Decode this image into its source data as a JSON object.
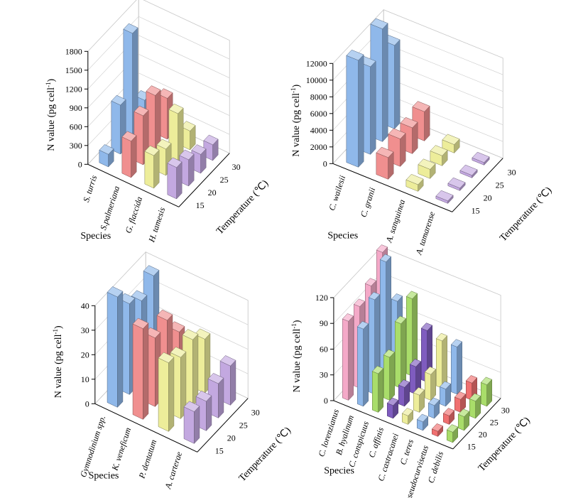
{
  "chart_data": [
    {
      "type": "bar3d",
      "ylabel": {
        "text": "N value (pg cell",
        "sup": "-1",
        "end": ")"
      },
      "xlabel": "Species",
      "zlabel": "Temperature (℃)",
      "categories": [
        15,
        20,
        25,
        30
      ],
      "ylim": [
        0,
        1800
      ],
      "yticks": [
        0,
        300,
        600,
        900,
        1200,
        1500,
        1800
      ],
      "series": [
        {
          "name": "S. turris",
          "color": "#8fb8ea",
          "values": [
            200,
            780,
            1720,
            450
          ]
        },
        {
          "name": "S.palmeriana",
          "color": "#f08f8f",
          "values": [
            580,
            780,
            900,
            650
          ]
        },
        {
          "name": "G. flaccida",
          "color": "#eded9a",
          "values": [
            520,
            420,
            780,
            300
          ]
        },
        {
          "name": "H. tamesis",
          "color": "#c3a8e0",
          "values": [
            500,
            420,
            300,
            250
          ]
        }
      ]
    },
    {
      "type": "bar3d",
      "ylabel": {
        "text": "N value (pg cell",
        "sup": "-1",
        "end": ")"
      },
      "xlabel": "Species",
      "zlabel": "Temperature (℃)",
      "categories": [
        15,
        20,
        25,
        30
      ],
      "ylim": [
        0,
        12000
      ],
      "yticks": [
        0,
        2000,
        4000,
        6000,
        8000,
        10000,
        12000
      ],
      "series": [
        {
          "name": "C. wailesii",
          "color": "#8fb8ea",
          "values": [
            12800,
            10500,
            13500,
            10000
          ]
        },
        {
          "name": "C. granii",
          "color": "#f08f8f",
          "values": [
            2600,
            3300,
            3100,
            3500
          ]
        },
        {
          "name": "A. sanguinea",
          "color": "#eded9a",
          "values": [
            800,
            1100,
            1200,
            1000
          ]
        },
        {
          "name": "A. tamarense",
          "color": "#c3a8e0",
          "values": [
            300,
            300,
            300,
            300
          ]
        }
      ]
    },
    {
      "type": "bar3d",
      "ylabel": {
        "text": "N value (pg cell",
        "sup": "-1",
        "end": ")"
      },
      "xlabel": "Species",
      "zlabel": "Temperature (℃)",
      "categories": [
        15,
        20,
        25,
        30
      ],
      "ylim": [
        0,
        40
      ],
      "yticks": [
        0,
        10,
        20,
        30,
        40
      ],
      "series": [
        {
          "name": "Gymnodinium spp.",
          "color": "#8fb8ea",
          "values": [
            45,
            37,
            33,
            38
          ]
        },
        {
          "name": "K. veneficum",
          "color": "#f08f8f",
          "values": [
            37,
            28,
            30,
            20
          ]
        },
        {
          "name": "P. dentatum",
          "color": "#eded9a",
          "values": [
            28,
            25,
            27,
            22
          ]
        },
        {
          "name": "A. carterae",
          "color": "#c3a8e0",
          "values": [
            13,
            12,
            14,
            16
          ]
        }
      ]
    },
    {
      "type": "bar3d",
      "ylabel": {
        "text": "N value (pg cell",
        "sup": "-1",
        "end": ")"
      },
      "xlabel": "Species",
      "zlabel": "Temperature (℃)",
      "categories": [
        15,
        20,
        25,
        30
      ],
      "ylim": [
        0,
        120
      ],
      "yticks": [
        0,
        30,
        60,
        90,
        120
      ],
      "series": [
        {
          "name": "C. lorenzianus",
          "color": "#f4a9c8",
          "values": [
            92,
            95,
            105,
            130
          ]
        },
        {
          "name": "B. hyalinum",
          "color": "#8fb8ea",
          "values": [
            90,
            110,
            140,
            80
          ]
        },
        {
          "name": "C. conspicuus",
          "color": "#a9dd6a",
          "values": [
            45,
            50,
            75,
            90
          ]
        },
        {
          "name": "C. affinis",
          "color": "#7f5cbf",
          "values": [
            15,
            22,
            32,
            60
          ]
        },
        {
          "name": "C. castracanei",
          "color": "#eded9a",
          "values": [
            10,
            20,
            30,
            55
          ]
        },
        {
          "name": "C. teres",
          "color": "#8fb8ea",
          "values": [
            10,
            15,
            20,
            55
          ]
        },
        {
          "name": "C. pseudocurvisetus",
          "color": "#f07070",
          "values": [
            6,
            10,
            15,
            20
          ]
        },
        {
          "name": "C. debilis",
          "color": "#a9dd6a",
          "values": [
            12,
            16,
            20,
            25
          ]
        }
      ]
    }
  ]
}
